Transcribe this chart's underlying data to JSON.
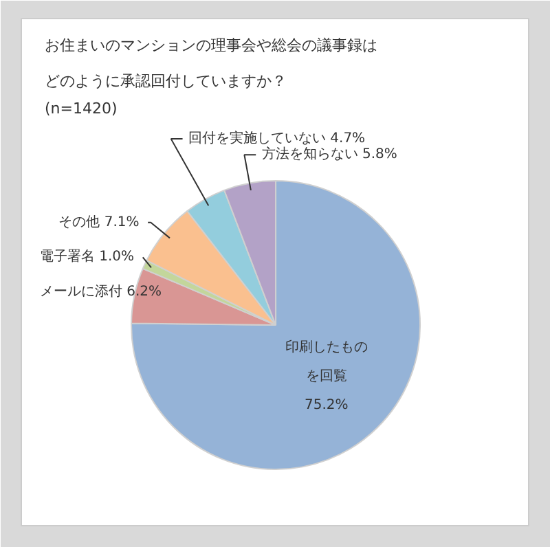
{
  "chart_data": {
    "type": "pie",
    "title": "お住まいのマンションの理事会や総会の議事録はどのように承認回付していますか？",
    "subtitle": "(n=1420)",
    "categories": [
      "印刷したものを回覧",
      "メールに添付",
      "電子署名",
      "その他",
      "回付を実施していない",
      "方法を知らない"
    ],
    "values": [
      75.2,
      6.2,
      1.0,
      7.1,
      4.7,
      5.8
    ],
    "value_labels": [
      "75.2%",
      "6.2%",
      "1.0%",
      "7.1%",
      "4.7%",
      "5.8%"
    ],
    "colors": [
      "#95b3d7",
      "#d99694",
      "#c3d69b",
      "#fac08f",
      "#93cddd",
      "#b3a2c7"
    ]
  }
}
